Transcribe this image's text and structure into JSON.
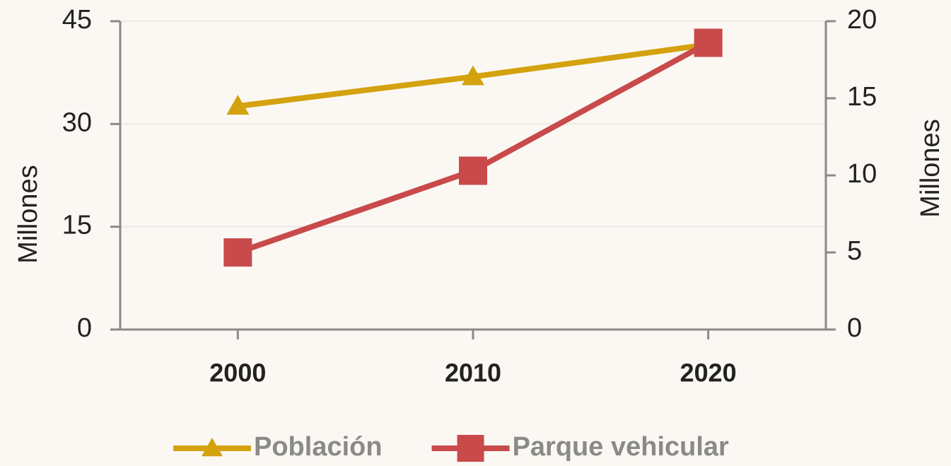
{
  "chart_data": {
    "type": "line",
    "categories": [
      "2000",
      "2010",
      "2020"
    ],
    "series": [
      {
        "name": "Población",
        "color": "#d4a20f",
        "marker": "triangle",
        "values": [
          32.6,
          36.9,
          41.6
        ]
      },
      {
        "name": "Parque vehicular",
        "color": "#c94a4a",
        "marker": "square",
        "axis": "y2",
        "values": [
          5.0,
          10.3,
          18.6
        ]
      }
    ],
    "ylabel": "Millones",
    "y2label": "Millones",
    "ylim": [
      0,
      45
    ],
    "yticks": [
      0,
      15,
      30,
      45
    ],
    "y2lim": [
      0,
      20
    ],
    "y2ticks": [
      0,
      5,
      10,
      15,
      20
    ],
    "grid": true,
    "legend": "bottom"
  }
}
